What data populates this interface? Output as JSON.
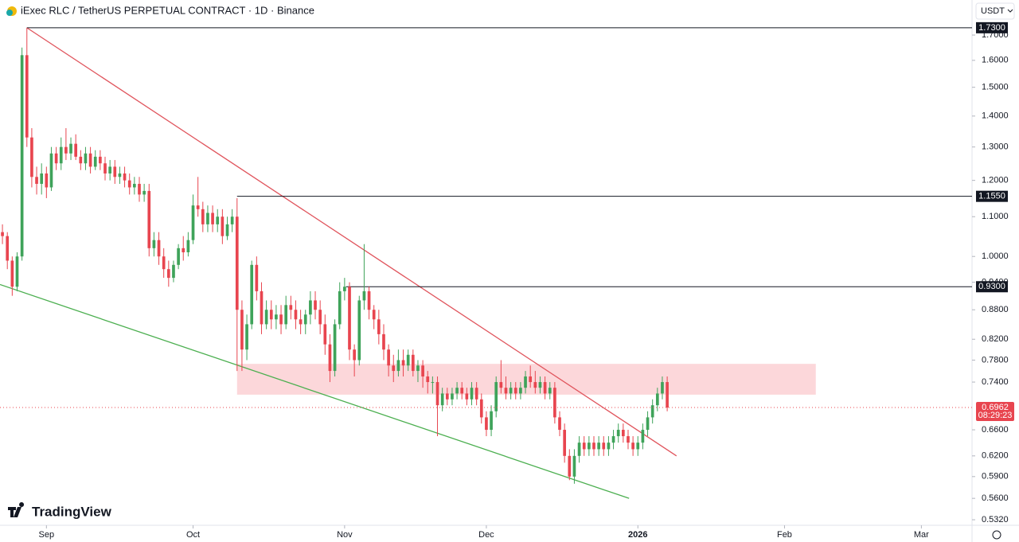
{
  "chart_data": {
    "type": "candlestick",
    "title": "iExec RLC / TetherUS PERPETUAL CONTRACT · 1D · Binance",
    "currency": "USDT",
    "brand": "TradingView",
    "countdown": "08:29:23",
    "log_scale": true,
    "up_color": "#3fa35a",
    "down_color": "#e8454f",
    "xlim": [
      -0.5,
      198.2
    ],
    "xticks": [
      {
        "value": 9,
        "label": "Sep"
      },
      {
        "value": 39,
        "label": "Oct"
      },
      {
        "value": 70,
        "label": "Nov"
      },
      {
        "value": 99,
        "label": "Dec"
      },
      {
        "value": 130,
        "label": "2026"
      },
      {
        "value": 160,
        "label": "Feb"
      },
      {
        "value": 188,
        "label": "Mar"
      }
    ],
    "ylim": [
      0.525,
      1.849
    ],
    "yticks": [
      {
        "value": 1.7,
        "label": "1.7000"
      },
      {
        "value": 1.6,
        "label": "1.6000"
      },
      {
        "value": 1.5,
        "label": "1.5000"
      },
      {
        "value": 1.4,
        "label": "1.4000"
      },
      {
        "value": 1.3,
        "label": "1.3000"
      },
      {
        "value": 1.2,
        "label": "1.2000"
      },
      {
        "value": 1.1,
        "label": "1.1000"
      },
      {
        "value": 1.0,
        "label": "1.0000"
      },
      {
        "value": 0.94,
        "label": "0.9400"
      },
      {
        "value": 0.88,
        "label": "0.8800"
      },
      {
        "value": 0.82,
        "label": "0.8200"
      },
      {
        "value": 0.78,
        "label": "0.7800"
      },
      {
        "value": 0.74,
        "label": "0.7400"
      },
      {
        "value": 0.66,
        "label": "0.6600"
      },
      {
        "value": 0.62,
        "label": "0.6200"
      },
      {
        "value": 0.59,
        "label": "0.5900"
      },
      {
        "value": 0.56,
        "label": "0.5600"
      },
      {
        "value": 0.532,
        "label": "0.5320"
      }
    ],
    "levels": [
      {
        "value": 1.73,
        "label": "1.7300",
        "start": 5
      },
      {
        "value": 1.155,
        "label": "1.1550",
        "start": 48
      },
      {
        "value": 0.93,
        "label": "0.9300",
        "start": 70.3
      }
    ],
    "trendlines": [
      {
        "color": "#e0545c",
        "x": [
          5,
          137.9
        ],
        "y": [
          1.73,
          0.62
        ]
      },
      {
        "color": "#4caf50",
        "x": [
          -0.5,
          128.2
        ],
        "y": [
          0.935,
          0.56
        ]
      }
    ],
    "zone": {
      "color": "rgba(242,54,69,0.2)",
      "x": [
        48,
        166.4
      ],
      "y": [
        0.718,
        0.773
      ]
    },
    "open": [
      1.06,
      1.05,
      0.99,
      0.93,
      1.0,
      1.62,
      1.33,
      1.21,
      1.19,
      1.22,
      1.18,
      1.28,
      1.25,
      1.3,
      1.28,
      1.31,
      1.27,
      1.25,
      1.28,
      1.24,
      1.27,
      1.25,
      1.22,
      1.24,
      1.21,
      1.22,
      1.2,
      1.18,
      1.19,
      1.16,
      1.17,
      1.02,
      1.04,
      1.0,
      0.97,
      0.95,
      0.98,
      1.02,
      1.01,
      1.04,
      1.13,
      1.12,
      1.08,
      1.11,
      1.08,
      1.1,
      1.05,
      1.08,
      1.1,
      0.88,
      0.8,
      0.85,
      0.98,
      0.92,
      0.85,
      0.88,
      0.86,
      0.87,
      0.85,
      0.89,
      0.88,
      0.86,
      0.85,
      0.87,
      0.9,
      0.88,
      0.85,
      0.81,
      0.76,
      0.85,
      0.92,
      0.93,
      0.8,
      0.78,
      0.9,
      0.92,
      0.88,
      0.86,
      0.83,
      0.8,
      0.77,
      0.76,
      0.78,
      0.77,
      0.79,
      0.76,
      0.77,
      0.75,
      0.74,
      0.74,
      0.7,
      0.72,
      0.71,
      0.72,
      0.73,
      0.72,
      0.71,
      0.73,
      0.71,
      0.68,
      0.66,
      0.69,
      0.74,
      0.73,
      0.72,
      0.73,
      0.72,
      0.73,
      0.75,
      0.74,
      0.73,
      0.74,
      0.72,
      0.73,
      0.68,
      0.66,
      0.62,
      0.59,
      0.62,
      0.64,
      0.63,
      0.64,
      0.63,
      0.64,
      0.63,
      0.64,
      0.65,
      0.66,
      0.65,
      0.64,
      0.63,
      0.64,
      0.66,
      0.68,
      0.7,
      0.72,
      0.74
    ],
    "high": [
      1.08,
      1.06,
      1.0,
      1.01,
      1.65,
      1.73,
      1.36,
      1.24,
      1.25,
      1.24,
      1.3,
      1.3,
      1.33,
      1.36,
      1.33,
      1.34,
      1.29,
      1.3,
      1.3,
      1.29,
      1.29,
      1.27,
      1.26,
      1.26,
      1.24,
      1.24,
      1.22,
      1.21,
      1.21,
      1.19,
      1.19,
      1.06,
      1.06,
      1.02,
      0.99,
      0.99,
      1.03,
      1.05,
      1.06,
      1.16,
      1.21,
      1.14,
      1.13,
      1.13,
      1.12,
      1.12,
      1.1,
      1.12,
      1.15,
      0.9,
      0.87,
      0.99,
      1.0,
      0.94,
      0.9,
      0.9,
      0.89,
      0.89,
      0.91,
      0.91,
      0.9,
      0.88,
      0.88,
      0.92,
      0.92,
      0.9,
      0.87,
      0.83,
      0.86,
      0.94,
      0.95,
      0.94,
      0.81,
      0.91,
      1.03,
      0.93,
      0.89,
      0.88,
      0.85,
      0.81,
      0.79,
      0.8,
      0.8,
      0.8,
      0.8,
      0.78,
      0.78,
      0.76,
      0.75,
      0.75,
      0.73,
      0.73,
      0.73,
      0.74,
      0.74,
      0.73,
      0.74,
      0.74,
      0.72,
      0.69,
      0.7,
      0.75,
      0.78,
      0.75,
      0.74,
      0.74,
      0.74,
      0.76,
      0.77,
      0.76,
      0.75,
      0.75,
      0.74,
      0.74,
      0.69,
      0.67,
      0.63,
      0.63,
      0.65,
      0.65,
      0.65,
      0.65,
      0.65,
      0.65,
      0.65,
      0.66,
      0.67,
      0.67,
      0.66,
      0.65,
      0.65,
      0.67,
      0.69,
      0.71,
      0.73,
      0.75,
      0.75
    ],
    "low": [
      1.03,
      0.97,
      0.91,
      0.92,
      0.99,
      1.3,
      1.18,
      1.16,
      1.16,
      1.15,
      1.17,
      1.23,
      1.23,
      1.26,
      1.26,
      1.26,
      1.23,
      1.23,
      1.22,
      1.23,
      1.23,
      1.2,
      1.2,
      1.19,
      1.19,
      1.18,
      1.16,
      1.16,
      1.14,
      1.14,
      1.0,
      1.0,
      0.98,
      0.95,
      0.93,
      0.94,
      0.97,
      0.99,
      1.0,
      1.03,
      1.1,
      1.06,
      1.06,
      1.06,
      1.06,
      1.03,
      1.04,
      1.06,
      0.76,
      0.76,
      0.78,
      0.84,
      0.9,
      0.83,
      0.84,
      0.84,
      0.84,
      0.83,
      0.84,
      0.86,
      0.84,
      0.83,
      0.83,
      0.85,
      0.86,
      0.83,
      0.79,
      0.74,
      0.75,
      0.84,
      0.9,
      0.78,
      0.75,
      0.77,
      0.88,
      0.86,
      0.84,
      0.81,
      0.78,
      0.75,
      0.74,
      0.75,
      0.75,
      0.76,
      0.75,
      0.74,
      0.73,
      0.72,
      0.72,
      0.65,
      0.69,
      0.7,
      0.7,
      0.71,
      0.71,
      0.7,
      0.7,
      0.7,
      0.67,
      0.65,
      0.65,
      0.68,
      0.72,
      0.71,
      0.71,
      0.71,
      0.71,
      0.72,
      0.73,
      0.72,
      0.72,
      0.71,
      0.71,
      0.67,
      0.65,
      0.61,
      0.585,
      0.58,
      0.61,
      0.62,
      0.62,
      0.62,
      0.62,
      0.62,
      0.62,
      0.63,
      0.64,
      0.64,
      0.63,
      0.62,
      0.62,
      0.63,
      0.65,
      0.67,
      0.69,
      0.71,
      0.69
    ],
    "close": [
      1.05,
      0.99,
      0.93,
      1.0,
      1.62,
      1.33,
      1.21,
      1.19,
      1.22,
      1.18,
      1.28,
      1.25,
      1.3,
      1.28,
      1.31,
      1.27,
      1.25,
      1.28,
      1.24,
      1.27,
      1.25,
      1.22,
      1.24,
      1.21,
      1.22,
      1.2,
      1.18,
      1.19,
      1.16,
      1.17,
      1.02,
      1.04,
      1.0,
      0.97,
      0.95,
      0.98,
      1.02,
      1.01,
      1.04,
      1.13,
      1.12,
      1.08,
      1.11,
      1.08,
      1.1,
      1.05,
      1.08,
      1.1,
      0.88,
      0.8,
      0.85,
      0.98,
      0.92,
      0.85,
      0.88,
      0.86,
      0.87,
      0.85,
      0.89,
      0.88,
      0.86,
      0.85,
      0.87,
      0.9,
      0.88,
      0.85,
      0.81,
      0.76,
      0.85,
      0.92,
      0.93,
      0.8,
      0.78,
      0.9,
      0.92,
      0.88,
      0.86,
      0.83,
      0.8,
      0.77,
      0.76,
      0.78,
      0.77,
      0.79,
      0.76,
      0.77,
      0.75,
      0.74,
      0.74,
      0.7,
      0.72,
      0.71,
      0.72,
      0.73,
      0.72,
      0.71,
      0.73,
      0.71,
      0.68,
      0.66,
      0.69,
      0.74,
      0.73,
      0.72,
      0.73,
      0.72,
      0.73,
      0.75,
      0.74,
      0.73,
      0.74,
      0.72,
      0.73,
      0.68,
      0.66,
      0.62,
      0.59,
      0.62,
      0.64,
      0.63,
      0.64,
      0.63,
      0.64,
      0.63,
      0.64,
      0.65,
      0.66,
      0.65,
      0.64,
      0.63,
      0.64,
      0.66,
      0.68,
      0.7,
      0.72,
      0.74,
      0.6962
    ]
  }
}
